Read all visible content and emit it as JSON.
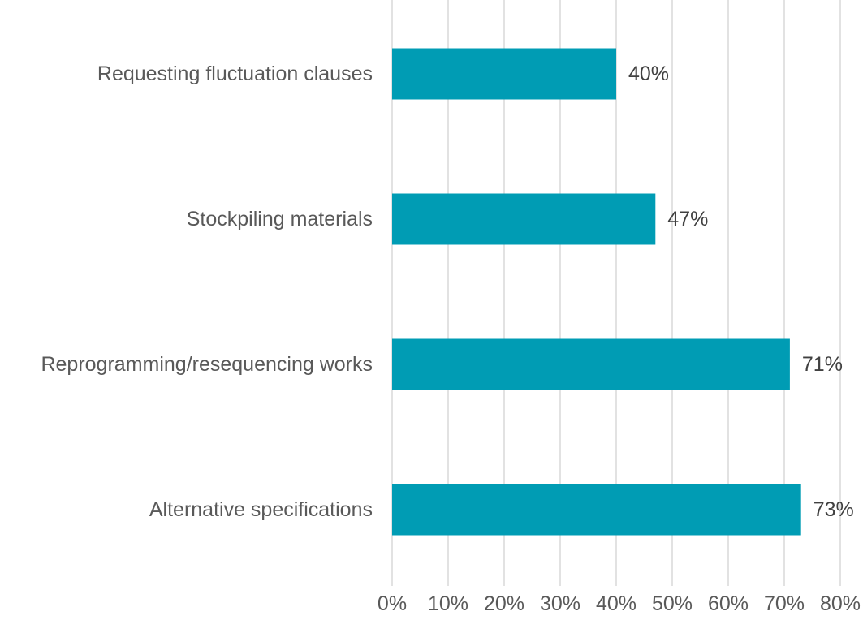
{
  "chart_data": {
    "type": "bar",
    "orientation": "horizontal",
    "categories": [
      "Requesting fluctuation clauses",
      "Stockpiling materials",
      "Reprogramming/resequencing works",
      "Alternative specifications"
    ],
    "values": [
      40,
      47,
      71,
      73
    ],
    "value_labels": [
      "40%",
      "47%",
      "71%",
      "73%"
    ],
    "xlim": [
      0,
      80
    ],
    "x_ticks": [
      0,
      10,
      20,
      30,
      40,
      50,
      60,
      70,
      80
    ],
    "x_tick_labels": [
      "0%",
      "10%",
      "20%",
      "30%",
      "40%",
      "50%",
      "60%",
      "70%",
      "80%"
    ],
    "grid": "vertical",
    "legend": "none",
    "bar_color": "#009cb4"
  }
}
